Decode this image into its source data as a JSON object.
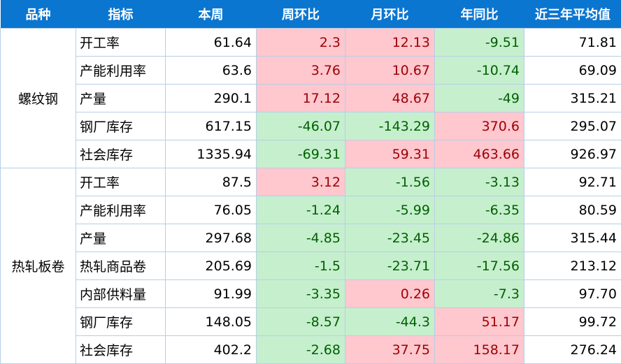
{
  "headers": [
    "品种",
    "指标",
    "本周",
    "周环比",
    "月环比",
    "年同比",
    "近三年平均值"
  ],
  "groups": [
    {
      "name": "螺纹钢",
      "rows": [
        {
          "indicator": "开工率",
          "this_week": "61.64",
          "wow": "2.3",
          "mom": "12.13",
          "yoy": "-9.51",
          "avg3y": "71.81"
        },
        {
          "indicator": "产能利用率",
          "this_week": "63.6",
          "wow": "3.76",
          "mom": "10.67",
          "yoy": "-10.74",
          "avg3y": "69.09"
        },
        {
          "indicator": "产量",
          "this_week": "290.1",
          "wow": "17.12",
          "mom": "48.67",
          "yoy": "-49",
          "avg3y": "315.21"
        },
        {
          "indicator": "钢厂库存",
          "this_week": "617.15",
          "wow": "-46.07",
          "mom": "-143.29",
          "yoy": "370.6",
          "avg3y": "295.07"
        },
        {
          "indicator": "社会库存",
          "this_week": "1335.94",
          "wow": "-69.31",
          "mom": "59.31",
          "yoy": "463.66",
          "avg3y": "926.97"
        }
      ]
    },
    {
      "name": "热轧板卷",
      "rows": [
        {
          "indicator": "开工率",
          "this_week": "87.5",
          "wow": "3.12",
          "mom": "-1.56",
          "yoy": "-3.13",
          "avg3y": "92.71"
        },
        {
          "indicator": "产能利用率",
          "this_week": "76.05",
          "wow": "-1.24",
          "mom": "-5.99",
          "yoy": "-6.35",
          "avg3y": "80.59"
        },
        {
          "indicator": "产量",
          "this_week": "297.68",
          "wow": "-4.85",
          "mom": "-23.45",
          "yoy": "-24.86",
          "avg3y": "315.44"
        },
        {
          "indicator": "热轧商品卷",
          "this_week": "205.69",
          "wow": "-1.5",
          "mom": "-23.71",
          "yoy": "-17.56",
          "avg3y": "213.12"
        },
        {
          "indicator": "内部供料量",
          "this_week": "91.99",
          "wow": "-3.35",
          "mom": "0.26",
          "yoy": "-7.3",
          "avg3y": "97.70"
        },
        {
          "indicator": "钢厂库存",
          "this_week": "148.05",
          "wow": "-8.57",
          "mom": "-44.3",
          "yoy": "51.17",
          "avg3y": "99.72"
        },
        {
          "indicator": "社会库存",
          "this_week": "402.2",
          "wow": "-2.68",
          "mom": "37.75",
          "yoy": "158.17",
          "avg3y": "276.24"
        }
      ]
    }
  ],
  "colors": {
    "header_bg": "#0b76d0",
    "increase_bg": "#ffc7ce",
    "increase_text": "#9c0006",
    "decrease_bg": "#c6efce",
    "decrease_text": "#006100"
  }
}
